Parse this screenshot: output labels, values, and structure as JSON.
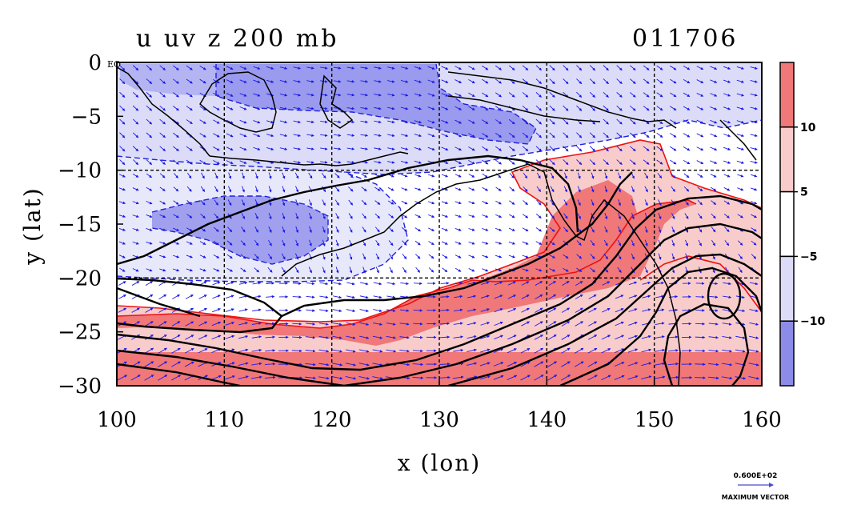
{
  "chart_data": {
    "type": "contour",
    "title": "u uv z 200 mb",
    "time_label": "011706",
    "xlabel": "x (lon)",
    "ylabel": "y (lat)",
    "xlim": [
      100,
      160
    ],
    "ylim": [
      -30,
      0
    ],
    "x_ticks": [
      100,
      110,
      120,
      130,
      140,
      150,
      160
    ],
    "y_ticks": [
      0,
      -5,
      -10,
      -15,
      -20,
      -25,
      -30
    ],
    "y_tick_labels": [
      "0",
      "−5",
      "−10",
      "−15",
      "−20",
      "−25",
      "−30"
    ],
    "corner_label": "EQ",
    "grid_lon": [
      110,
      120,
      130,
      140,
      150
    ],
    "grid_lat": [
      -10,
      -20
    ],
    "grid": true,
    "colorbar": {
      "labels": [
        "10",
        "5",
        "−5",
        "−10"
      ],
      "levels": [
        10,
        5,
        -5,
        -10
      ],
      "colors": [
        "#f07878",
        "#f9cccc",
        "#ffffff",
        "#dcdcf8",
        "#8c8ce8"
      ]
    },
    "vector_legend": {
      "value": "0.600E+02",
      "label": "MAXIMUM VECTOR"
    },
    "series": [
      {
        "name": "u (zonal wind, shaded)",
        "kind": "filled"
      },
      {
        "name": "uv (wind vectors)",
        "kind": "vectors"
      },
      {
        "name": "z (geopotential height, contours)",
        "kind": "contours"
      }
    ],
    "colors": {
      "vector": "#1a1ae6",
      "coast": "#000000",
      "zcontour": "#000000",
      "positive_edge": "#ee1111",
      "negative_edge": "#2020dd"
    }
  }
}
